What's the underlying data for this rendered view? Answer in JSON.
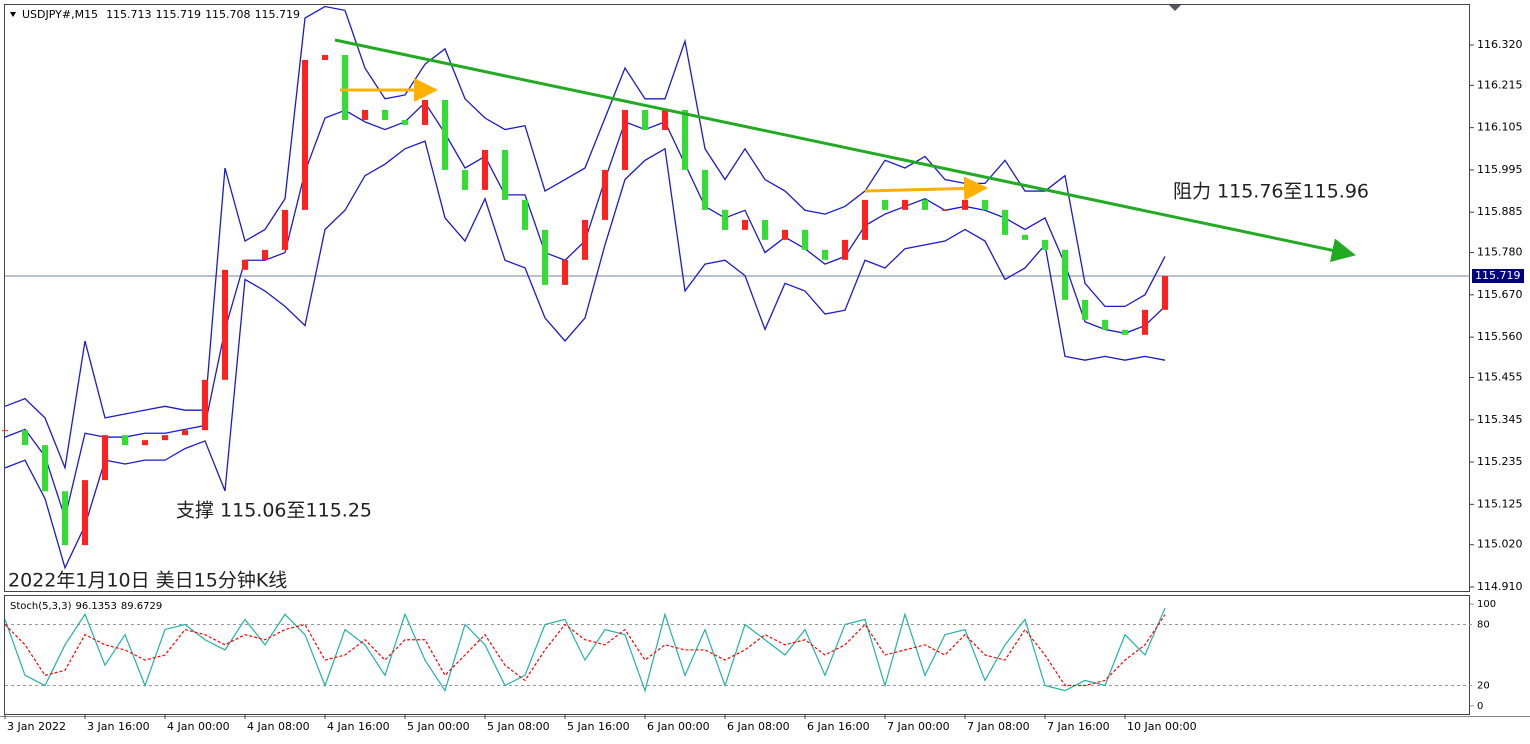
{
  "chart_data": [
    {
      "type": "candlestick",
      "title": "USDJPY#,M15",
      "ohlc": [
        115.713,
        115.719,
        115.708,
        115.719
      ],
      "x": [
        0,
        8,
        16,
        24,
        32,
        40,
        48,
        56,
        64,
        72,
        80,
        88,
        96,
        104,
        112,
        120,
        128,
        136,
        144,
        152,
        160,
        168,
        176,
        184,
        192,
        200,
        208,
        216,
        224,
        232,
        240,
        248,
        256,
        264,
        272,
        280,
        288,
        296,
        304,
        312,
        320,
        328,
        336,
        344,
        352,
        360,
        368,
        376,
        384,
        392,
        400,
        408,
        416,
        424,
        432,
        440,
        448,
        456,
        464
      ],
      "close": [
        115.318,
        115.279,
        115.159,
        115.019,
        115.188,
        115.305,
        115.279,
        115.292,
        115.305,
        115.318,
        115.449,
        115.735,
        115.761,
        115.787,
        115.891,
        116.281,
        116.294,
        116.125,
        116.151,
        116.125,
        116.112,
        116.177,
        115.995,
        115.943,
        116.047,
        115.917,
        115.839,
        115.696,
        115.761,
        115.865,
        115.995,
        116.151,
        116.099,
        116.151,
        115.995,
        115.891,
        115.839,
        115.865,
        115.813,
        115.839,
        115.787,
        115.761,
        115.813,
        115.917,
        115.891,
        115.917,
        115.891,
        115.891,
        115.917,
        115.891,
        115.826,
        115.813,
        115.787,
        115.657,
        115.605,
        115.579,
        115.566,
        115.631,
        115.719
      ],
      "up_color": "#ff2020",
      "down_color": "#33dd33",
      "bands": {
        "color": "#1a1ad0",
        "upper": [
          115.38,
          115.4,
          115.35,
          115.22,
          115.55,
          115.35,
          115.36,
          115.37,
          115.38,
          115.37,
          115.37,
          116.0,
          115.81,
          115.84,
          115.92,
          116.39,
          116.42,
          116.41,
          116.26,
          116.18,
          116.19,
          116.27,
          116.31,
          116.18,
          116.13,
          116.1,
          116.11,
          115.94,
          115.97,
          116.0,
          116.13,
          116.26,
          116.18,
          116.18,
          116.33,
          116.05,
          115.97,
          116.05,
          115.97,
          115.94,
          115.89,
          115.88,
          115.9,
          115.94,
          116.02,
          116.0,
          116.03,
          115.97,
          115.96,
          115.96,
          116.02,
          115.94,
          115.94,
          115.98,
          115.7,
          115.64,
          115.64,
          115.67,
          115.77
        ],
        "middle": [
          115.3,
          115.32,
          115.25,
          115.09,
          115.31,
          115.3,
          115.3,
          115.31,
          115.31,
          115.32,
          115.33,
          115.58,
          115.76,
          115.76,
          115.78,
          115.99,
          116.13,
          116.15,
          116.12,
          116.1,
          116.12,
          116.17,
          116.09,
          116.0,
          116.03,
          115.93,
          115.93,
          115.78,
          115.76,
          115.81,
          115.97,
          116.12,
          116.1,
          116.12,
          116.01,
          115.9,
          115.87,
          115.89,
          115.78,
          115.82,
          115.79,
          115.75,
          115.77,
          115.85,
          115.88,
          115.9,
          115.92,
          115.89,
          115.9,
          115.89,
          115.87,
          115.84,
          115.87,
          115.75,
          115.6,
          115.58,
          115.57,
          115.59,
          115.64
        ],
        "lower": [
          115.22,
          115.24,
          115.14,
          114.96,
          115.07,
          115.24,
          115.23,
          115.24,
          115.24,
          115.27,
          115.29,
          115.16,
          115.71,
          115.68,
          115.64,
          115.59,
          115.84,
          115.89,
          115.98,
          116.01,
          116.05,
          116.07,
          115.87,
          115.81,
          115.92,
          115.76,
          115.74,
          115.61,
          115.55,
          115.61,
          115.8,
          115.97,
          116.02,
          116.05,
          115.68,
          115.75,
          115.76,
          115.72,
          115.58,
          115.7,
          115.68,
          115.62,
          115.63,
          115.76,
          115.74,
          115.79,
          115.8,
          115.81,
          115.84,
          115.81,
          115.71,
          115.74,
          115.8,
          115.51,
          115.5,
          115.51,
          115.5,
          115.51,
          115.5
        ]
      },
      "current_price": 115.719,
      "annotations": [
        "阻力 115.76至115.96",
        "支撑 115.06至115.25",
        "2022年1月10日 美日15分钟K线"
      ],
      "xlim": [
        0,
        586
      ],
      "xticks": [
        {
          "value": 0,
          "label": "3 Jan 2022"
        },
        {
          "value": 32,
          "label": "3 Jan 16:00"
        },
        {
          "value": 64,
          "label": "4 Jan 00:00"
        },
        {
          "value": 96,
          "label": "4 Jan 08:00"
        },
        {
          "value": 128,
          "label": "4 Jan 16:00"
        },
        {
          "value": 160,
          "label": "5 Jan 00:00"
        },
        {
          "value": 192,
          "label": "5 Jan 08:00"
        },
        {
          "value": 224,
          "label": "5 Jan 16:00"
        },
        {
          "value": 256,
          "label": "6 Jan 00:00"
        },
        {
          "value": 288,
          "label": "6 Jan 08:00"
        },
        {
          "value": 320,
          "label": "6 Jan 16:00"
        },
        {
          "value": 352,
          "label": "7 Jan 00:00"
        },
        {
          "value": 384,
          "label": "7 Jan 08:00"
        },
        {
          "value": 416,
          "label": "7 Jan 16:00"
        },
        {
          "value": 448,
          "label": "10 Jan 00:00"
        }
      ],
      "ylim": [
        114.897,
        116.424
      ],
      "yticks": [
        {
          "value": 116.32,
          "label": "116.320"
        },
        116.215,
        116.105,
        115.995,
        115.885,
        {
          "value": 115.78,
          "label": "115.780"
        },
        {
          "value": 115.67,
          "label": "115.670"
        },
        {
          "value": 115.56,
          "label": "115.560"
        },
        115.455,
        115.345,
        115.235,
        115.125,
        {
          "value": 115.02,
          "label": "115.020"
        },
        {
          "value": 114.91,
          "label": "114.910"
        }
      ]
    },
    {
      "type": "line",
      "title": "Stoch(5,3,3)",
      "readout": [
        96.1353,
        89.6729
      ],
      "series": [
        {
          "color": "#20b2aa",
          "dashed": false,
          "values": [
            85,
            30,
            20,
            60,
            90,
            40,
            70,
            20,
            75,
            80,
            65,
            55,
            85,
            60,
            90,
            70,
            20,
            75,
            60,
            30,
            90,
            45,
            15,
            80,
            60,
            20,
            30,
            80,
            85,
            45,
            75,
            70,
            15,
            90,
            30,
            75,
            20,
            80,
            65,
            50,
            75,
            30,
            80,
            85,
            20,
            90,
            30,
            70,
            75,
            25,
            60,
            85,
            20,
            15,
            25,
            20,
            70,
            50,
            96.1353
          ]
        },
        {
          "color": "#ff0000",
          "dashed": true,
          "values": [
            80,
            60,
            30,
            35,
            70,
            60,
            55,
            45,
            50,
            75,
            70,
            60,
            70,
            65,
            75,
            80,
            45,
            50,
            65,
            45,
            65,
            65,
            30,
            50,
            70,
            40,
            25,
            55,
            80,
            65,
            60,
            75,
            45,
            60,
            55,
            55,
            45,
            55,
            70,
            60,
            65,
            50,
            60,
            80,
            50,
            55,
            60,
            50,
            70,
            50,
            45,
            75,
            50,
            20,
            20,
            25,
            45,
            60,
            89.6729
          ]
        }
      ],
      "ylim": [
        -8,
        108
      ],
      "yticks": [
        100,
        80,
        20,
        0
      ]
    }
  ]
}
